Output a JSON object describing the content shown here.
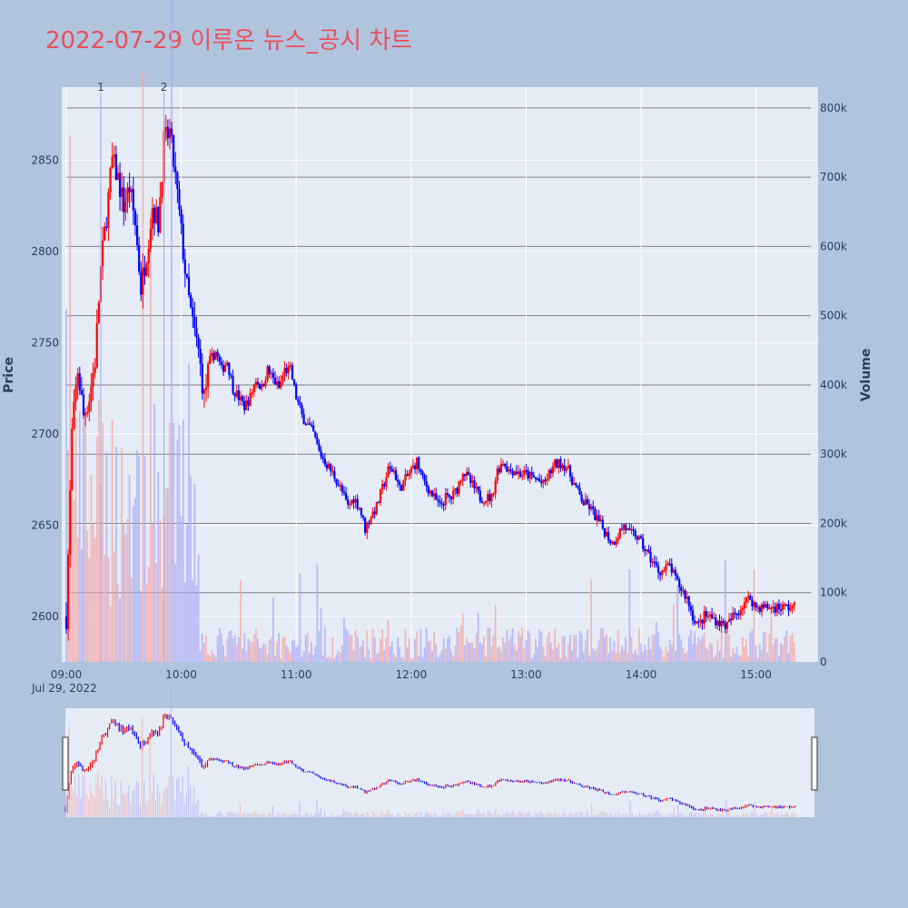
{
  "title": "2022-07-29 이루온 뉴스_공시 차트",
  "colors": {
    "page_bg": "#b0c4de",
    "plot_bg": "#e5ecf6",
    "up": "#ff0000",
    "down": "#0000ff",
    "title": "#e8505b",
    "vol_up": "#f4a6a6",
    "vol_down": "#a9a9f5"
  },
  "chart_data": {
    "type": "candlestick",
    "xlabel": "",
    "ylabel": "Price",
    "y2label": "Volume",
    "date_label": "Jul 29, 2022",
    "x_ticks": [
      "09:00",
      "10:00",
      "11:00",
      "12:00",
      "13:00",
      "14:00",
      "15:00"
    ],
    "y_ticks": [
      2600,
      2650,
      2700,
      2750,
      2800,
      2850
    ],
    "y2_ticks": [
      "0",
      "100k",
      "200k",
      "300k",
      "400k",
      "500k",
      "600k",
      "700k",
      "800k"
    ],
    "y2_tick_values": [
      0,
      100000,
      200000,
      300000,
      400000,
      500000,
      600000,
      700000,
      800000
    ],
    "ylim": [
      2575,
      2890
    ],
    "y2lim": [
      0,
      830000
    ],
    "x_range": [
      "09:00",
      "15:30"
    ],
    "annotations": [
      {
        "label": "1",
        "time": "09:18"
      },
      {
        "label": "2",
        "time": "09:51"
      }
    ],
    "price_path": [
      [
        "09:00",
        2600
      ],
      [
        "09:03",
        2700
      ],
      [
        "09:06",
        2735
      ],
      [
        "09:09",
        2710
      ],
      [
        "09:12",
        2720
      ],
      [
        "09:15",
        2740
      ],
      [
        "09:18",
        2790
      ],
      [
        "09:21",
        2820
      ],
      [
        "09:24",
        2850
      ],
      [
        "09:27",
        2840
      ],
      [
        "09:30",
        2825
      ],
      [
        "09:33",
        2835
      ],
      [
        "09:36",
        2815
      ],
      [
        "09:39",
        2780
      ],
      [
        "09:42",
        2800
      ],
      [
        "09:45",
        2825
      ],
      [
        "09:48",
        2815
      ],
      [
        "09:51",
        2860
      ],
      [
        "09:54",
        2865
      ],
      [
        "09:57",
        2840
      ],
      [
        "10:00",
        2810
      ],
      [
        "10:03",
        2780
      ],
      [
        "10:06",
        2760
      ],
      [
        "10:09",
        2745
      ],
      [
        "10:12",
        2720
      ],
      [
        "10:15",
        2740
      ],
      [
        "10:18",
        2745
      ],
      [
        "10:21",
        2735
      ],
      [
        "10:24",
        2740
      ],
      [
        "10:27",
        2725
      ],
      [
        "10:30",
        2720
      ],
      [
        "10:33",
        2715
      ],
      [
        "10:36",
        2720
      ],
      [
        "10:39",
        2730
      ],
      [
        "10:42",
        2725
      ],
      [
        "10:45",
        2735
      ],
      [
        "10:48",
        2730
      ],
      [
        "10:51",
        2725
      ],
      [
        "10:54",
        2735
      ],
      [
        "10:57",
        2735
      ],
      [
        "11:00",
        2720
      ],
      [
        "11:03",
        2710
      ],
      [
        "11:06",
        2705
      ],
      [
        "11:09",
        2700
      ],
      [
        "11:12",
        2690
      ],
      [
        "11:15",
        2685
      ],
      [
        "11:18",
        2680
      ],
      [
        "11:21",
        2675
      ],
      [
        "11:24",
        2668
      ],
      [
        "11:27",
        2660
      ],
      [
        "11:30",
        2665
      ],
      [
        "11:33",
        2660
      ],
      [
        "11:36",
        2648
      ],
      [
        "11:39",
        2655
      ],
      [
        "11:42",
        2660
      ],
      [
        "11:45",
        2670
      ],
      [
        "11:48",
        2680
      ],
      [
        "11:51",
        2680
      ],
      [
        "11:54",
        2670
      ],
      [
        "11:57",
        2675
      ],
      [
        "12:00",
        2680
      ],
      [
        "12:03",
        2685
      ],
      [
        "12:06",
        2675
      ],
      [
        "12:09",
        2670
      ],
      [
        "12:12",
        2665
      ],
      [
        "12:15",
        2660
      ],
      [
        "12:18",
        2665
      ],
      [
        "12:21",
        2665
      ],
      [
        "12:24",
        2670
      ],
      [
        "12:27",
        2680
      ],
      [
        "12:30",
        2675
      ],
      [
        "12:33",
        2670
      ],
      [
        "12:36",
        2665
      ],
      [
        "12:39",
        2665
      ],
      [
        "12:42",
        2665
      ],
      [
        "12:45",
        2680
      ],
      [
        "12:48",
        2685
      ],
      [
        "12:51",
        2680
      ],
      [
        "12:54",
        2680
      ],
      [
        "12:57",
        2678
      ],
      [
        "13:00",
        2678
      ],
      [
        "13:03",
        2676
      ],
      [
        "13:06",
        2675
      ],
      [
        "13:09",
        2672
      ],
      [
        "13:12",
        2678
      ],
      [
        "13:15",
        2683
      ],
      [
        "13:18",
        2684
      ],
      [
        "13:21",
        2682
      ],
      [
        "13:24",
        2675
      ],
      [
        "13:27",
        2668
      ],
      [
        "13:30",
        2662
      ],
      [
        "13:33",
        2660
      ],
      [
        "13:36",
        2655
      ],
      [
        "13:39",
        2650
      ],
      [
        "13:42",
        2645
      ],
      [
        "13:45",
        2640
      ],
      [
        "13:48",
        2645
      ],
      [
        "13:51",
        2650
      ],
      [
        "13:54",
        2645
      ],
      [
        "13:57",
        2645
      ],
      [
        "14:00",
        2640
      ],
      [
        "14:03",
        2635
      ],
      [
        "14:06",
        2630
      ],
      [
        "14:09",
        2625
      ],
      [
        "14:12",
        2625
      ],
      [
        "14:15",
        2628
      ],
      [
        "14:18",
        2620
      ],
      [
        "14:21",
        2615
      ],
      [
        "14:24",
        2610
      ],
      [
        "14:27",
        2600
      ],
      [
        "14:30",
        2595
      ],
      [
        "14:33",
        2600
      ],
      [
        "14:36",
        2600
      ],
      [
        "14:39",
        2598
      ],
      [
        "14:42",
        2596
      ],
      [
        "14:45",
        2595
      ],
      [
        "14:48",
        2600
      ],
      [
        "14:51",
        2603
      ],
      [
        "14:54",
        2608
      ],
      [
        "14:57",
        2610
      ],
      [
        "15:00",
        2605
      ]
    ]
  }
}
